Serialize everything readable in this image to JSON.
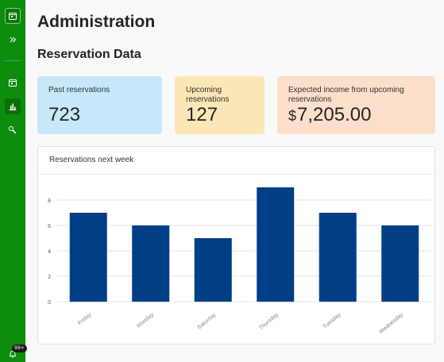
{
  "page": {
    "title": "Administration",
    "section_title": "Reservation Data"
  },
  "sidebar": {
    "items": [
      {
        "icon": "calendar-icon",
        "active": true
      },
      {
        "icon": "double-chevron-right-icon"
      },
      {
        "icon": "calendar-icon"
      },
      {
        "icon": "bar-chart-icon",
        "active": true
      },
      {
        "icon": "wrench-icon"
      }
    ],
    "notifications": {
      "icon": "bell-icon",
      "badge": "99+"
    }
  },
  "cards": {
    "past": {
      "label": "Past reservations",
      "value": "723"
    },
    "upcoming": {
      "label": "Upcoming reservations",
      "value": "127"
    },
    "income": {
      "label": "Expected income from upcoming reservations",
      "currency": "$",
      "value": "7,205.00"
    }
  },
  "colors": {
    "sidebar": "#0d8d0d",
    "bar": "#003e85",
    "card_past": "#c7e8fb",
    "card_upcoming": "#fbe7b5",
    "card_income": "#fbdfcb"
  },
  "chart_data": {
    "type": "bar",
    "title": "Reservations next week",
    "categories": [
      "Friday",
      "Monday",
      "Saturday",
      "Thursday",
      "Tuesday",
      "Wednesday"
    ],
    "values": [
      7,
      6,
      5,
      9,
      7,
      6
    ],
    "ylim": [
      0,
      9
    ],
    "yticks": [
      0,
      2,
      4,
      6,
      8
    ],
    "grid": true,
    "xlabel": "",
    "ylabel": ""
  }
}
